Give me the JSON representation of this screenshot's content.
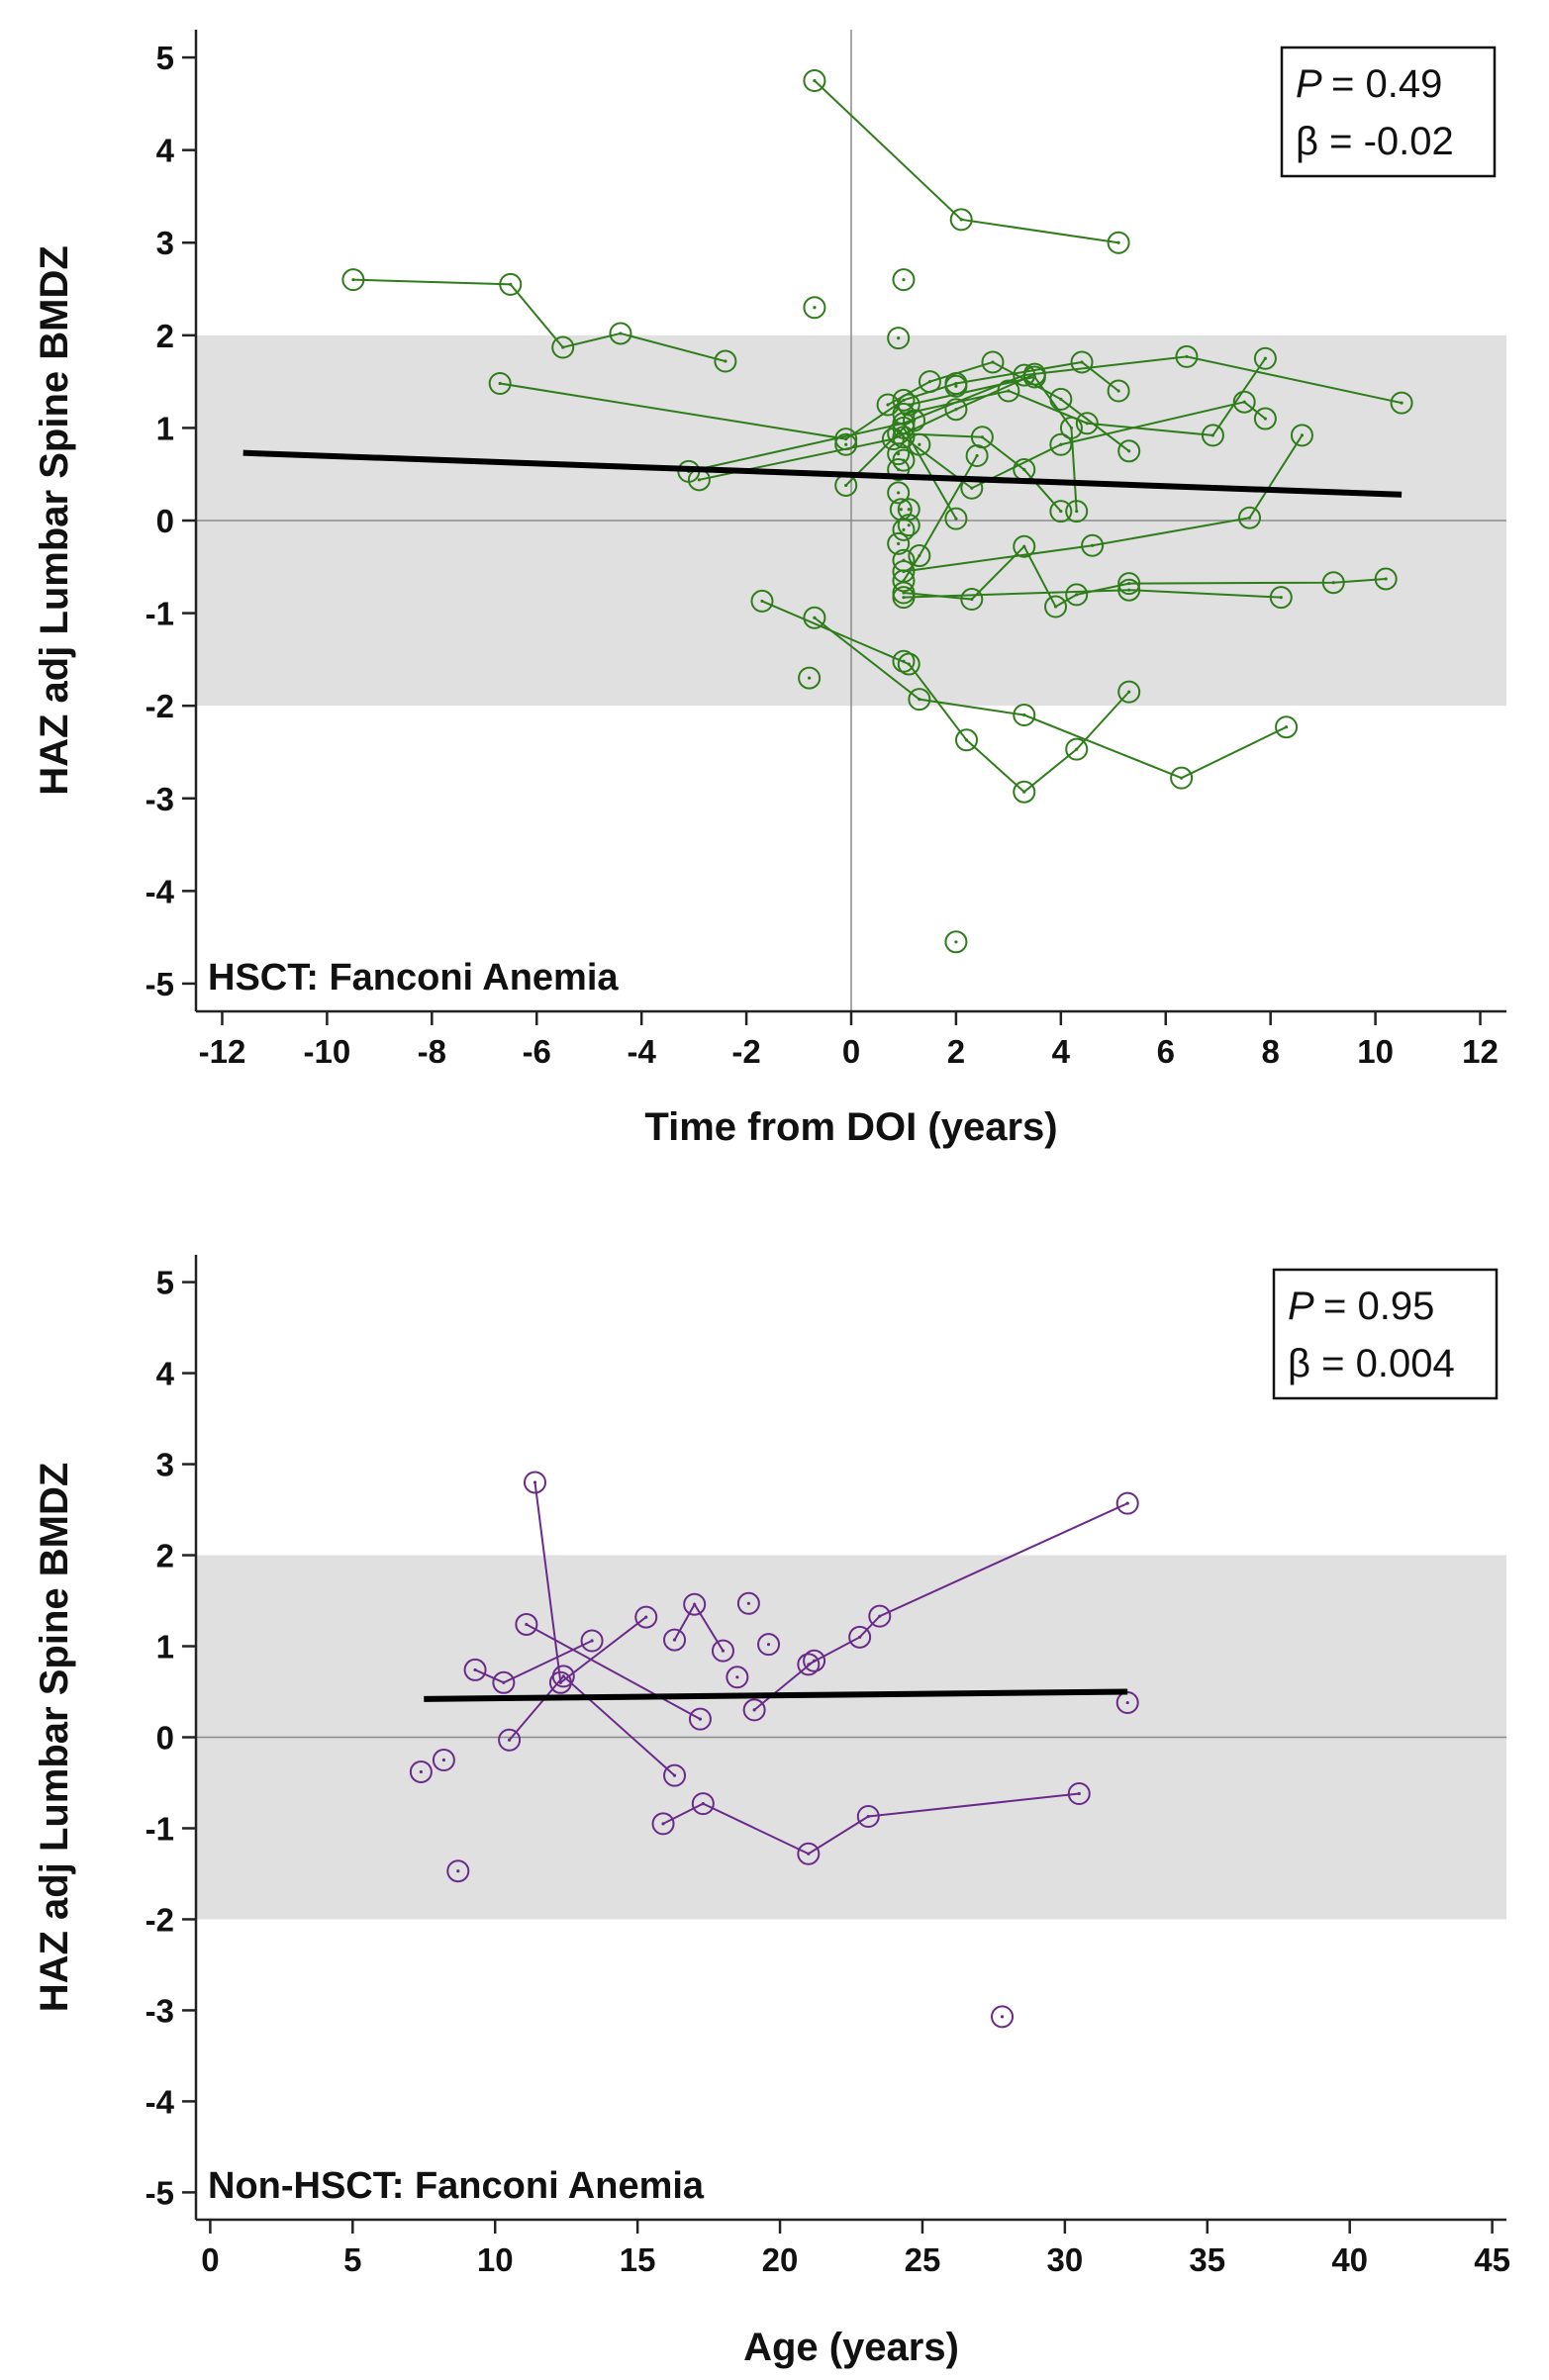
{
  "colors": {
    "hsct": "#2e7d1a",
    "non_hsct": "#6a2a8a",
    "band": "#e0e0e0",
    "trend": "#000000",
    "axis": "#222222",
    "refline": "#8a8a8a"
  },
  "chart_data": [
    {
      "type": "scatter",
      "panel_label": "HSCT: Fanconi Anemia",
      "xlabel": "Time from DOI (years)",
      "ylabel": "HAZ adj Lumbar Spine BMDZ",
      "xlim": [
        -12.5,
        12.5
      ],
      "ylim": [
        -5.3,
        5.3
      ],
      "xticks": [
        -12,
        -10,
        -8,
        -6,
        -4,
        -2,
        0,
        2,
        4,
        6,
        8,
        10,
        12
      ],
      "yticks": [
        5,
        4,
        3,
        2,
        1,
        0,
        -1,
        -2,
        -3,
        -4,
        -5
      ],
      "reference_band": [
        -2,
        2
      ],
      "reference_vline": 0,
      "stats": {
        "p_label": "P",
        "p_value": "= 0.49",
        "beta_label": "β  = -0.02"
      },
      "trend": {
        "x": [
          -11.6,
          10.5
        ],
        "y": [
          0.73,
          0.28
        ]
      },
      "series": [
        {
          "name": "subject-1",
          "points": [
            [
              -0.7,
              4.75
            ],
            [
              2.1,
              3.25
            ],
            [
              5.1,
              3.0
            ]
          ]
        },
        {
          "name": "subject-2",
          "points": [
            [
              -9.5,
              2.6
            ],
            [
              -6.5,
              2.55
            ],
            [
              -5.5,
              1.87
            ],
            [
              -4.4,
              2.02
            ],
            [
              -2.4,
              1.72
            ]
          ]
        },
        {
          "name": "subject-3",
          "points": [
            [
              -6.7,
              1.48
            ],
            [
              -0.1,
              0.88
            ],
            [
              1.0,
              1.3
            ],
            [
              2.0,
              1.48
            ],
            [
              4.4,
              1.71
            ],
            [
              5.1,
              1.4
            ]
          ]
        },
        {
          "name": "subject-4",
          "points": [
            [
              -3.1,
              0.53
            ],
            [
              1.0,
              1.05
            ],
            [
              3.3,
              1.57
            ],
            [
              6.4,
              1.77
            ],
            [
              10.5,
              1.27
            ]
          ]
        },
        {
          "name": "subject-5",
          "points": [
            [
              -2.9,
              0.44
            ],
            [
              0.8,
              0.88
            ],
            [
              2.0,
              1.2
            ],
            [
              3.5,
              1.58
            ]
          ]
        },
        {
          "name": "subject-6",
          "points": [
            [
              0.7,
              1.25
            ],
            [
              1.5,
              1.5
            ],
            [
              2.7,
              1.71
            ],
            [
              4.0,
              1.31
            ],
            [
              5.3,
              0.75
            ]
          ]
        },
        {
          "name": "subject-7",
          "points": [
            [
              0.9,
              0.94
            ],
            [
              2.5,
              0.9
            ],
            [
              3.3,
              0.55
            ],
            [
              4.0,
              0.1
            ]
          ]
        },
        {
          "name": "subject-8",
          "points": [
            [
              1.0,
              1.15
            ],
            [
              3.0,
              1.4
            ],
            [
              4.5,
              1.05
            ],
            [
              6.9,
              0.92
            ],
            [
              7.9,
              1.75
            ]
          ]
        },
        {
          "name": "subject-9",
          "points": [
            [
              1.0,
              0.9
            ],
            [
              2.3,
              0.35
            ],
            [
              4.0,
              0.82
            ],
            [
              7.5,
              1.28
            ],
            [
              7.9,
              1.1
            ]
          ]
        },
        {
          "name": "subject-10",
          "points": [
            [
              1.1,
              1.25
            ],
            [
              3.5,
              1.55
            ],
            [
              4.2,
              1.0
            ],
            [
              4.3,
              0.1
            ]
          ]
        },
        {
          "name": "subject-11",
          "points": [
            [
              -0.1,
              0.38
            ],
            [
              1.0,
              1.0
            ],
            [
              2.0,
              0.02
            ]
          ]
        },
        {
          "name": "subject-12",
          "points": [
            [
              1.0,
              -0.55
            ],
            [
              4.6,
              -0.27
            ],
            [
              7.6,
              0.03
            ],
            [
              8.6,
              0.92
            ]
          ]
        },
        {
          "name": "subject-13",
          "points": [
            [
              1.0,
              -0.78
            ],
            [
              2.3,
              -0.85
            ],
            [
              3.3,
              -0.28
            ],
            [
              3.9,
              -0.93
            ],
            [
              4.3,
              -0.8
            ],
            [
              5.3,
              -0.68
            ],
            [
              9.2,
              -0.67
            ],
            [
              10.2,
              -0.63
            ]
          ]
        },
        {
          "name": "subject-14",
          "points": [
            [
              1.0,
              -0.83
            ],
            [
              5.3,
              -0.75
            ],
            [
              8.2,
              -0.83
            ]
          ]
        },
        {
          "name": "subject-15",
          "points": [
            [
              -1.7,
              -0.87
            ],
            [
              1.1,
              -1.55
            ],
            [
              2.2,
              -2.37
            ],
            [
              3.3,
              -2.93
            ],
            [
              4.3,
              -2.47
            ],
            [
              5.3,
              -1.85
            ]
          ]
        },
        {
          "name": "subject-16",
          "points": [
            [
              -0.7,
              -1.05
            ],
            [
              1.3,
              -1.93
            ],
            [
              3.3,
              -2.1
            ],
            [
              6.3,
              -2.78
            ],
            [
              8.3,
              -2.23
            ]
          ]
        },
        {
          "name": "subject-17",
          "points": [
            [
              1.0,
              -0.65
            ],
            [
              1.3,
              -0.38
            ],
            [
              2.4,
              0.7
            ]
          ]
        },
        {
          "name": "singletons",
          "points": [
            [
              -0.7,
              2.3
            ],
            [
              1.0,
              2.6
            ],
            [
              0.9,
              1.97
            ],
            [
              -0.8,
              -1.7
            ],
            [
              2.0,
              -4.55
            ],
            [
              1.0,
              -1.52
            ],
            [
              0.9,
              0.55
            ],
            [
              0.9,
              0.3
            ],
            [
              0.95,
              0.12
            ],
            [
              1.0,
              -0.1
            ],
            [
              0.9,
              -0.25
            ],
            [
              1.0,
              -0.43
            ],
            [
              1.1,
              0.12
            ],
            [
              1.1,
              -0.05
            ],
            [
              0.9,
              0.72
            ],
            [
              1.0,
              0.65
            ],
            [
              1.2,
              1.08
            ],
            [
              1.3,
              0.82
            ],
            [
              -0.1,
              0.82
            ],
            [
              2.0,
              1.45
            ]
          ]
        }
      ]
    },
    {
      "type": "scatter",
      "panel_label": "Non-HSCT: Fanconi Anemia",
      "xlabel": "Age (years)",
      "ylabel": "HAZ adj Lumbar Spine BMDZ",
      "xlim": [
        -0.5,
        45.5
      ],
      "ylim": [
        -5.3,
        5.3
      ],
      "xticks": [
        0,
        5,
        10,
        15,
        20,
        25,
        30,
        35,
        40,
        45
      ],
      "yticks": [
        5,
        4,
        3,
        2,
        1,
        0,
        -1,
        -2,
        -3,
        -4,
        -5
      ],
      "reference_band": [
        -2,
        2
      ],
      "reference_vline": null,
      "stats": {
        "p_label": "P",
        "p_value": "= 0.95",
        "beta_label": "β  = 0.004"
      },
      "trend": {
        "x": [
          7.5,
          32.2
        ],
        "y": [
          0.42,
          0.5
        ]
      },
      "series": [
        {
          "name": "subject-1",
          "points": [
            [
              11.4,
              2.8
            ],
            [
              12.3,
              0.6
            ],
            [
              15.3,
              1.32
            ]
          ]
        },
        {
          "name": "subject-2",
          "points": [
            [
              11.1,
              1.24
            ],
            [
              17.2,
              0.2
            ]
          ]
        },
        {
          "name": "subject-3",
          "points": [
            [
              9.3,
              0.74
            ],
            [
              10.3,
              0.6
            ],
            [
              13.4,
              1.06
            ]
          ]
        },
        {
          "name": "subject-4",
          "points": [
            [
              10.5,
              -0.03
            ],
            [
              12.4,
              0.67
            ],
            [
              16.3,
              -0.42
            ]
          ]
        },
        {
          "name": "subject-5",
          "points": [
            [
              16.3,
              1.07
            ],
            [
              17.0,
              1.46
            ],
            [
              18.0,
              0.95
            ]
          ]
        },
        {
          "name": "subject-6",
          "points": [
            [
              19.1,
              0.3
            ],
            [
              21.2,
              0.84
            ]
          ]
        },
        {
          "name": "subject-7",
          "points": [
            [
              15.9,
              -0.95
            ],
            [
              17.3,
              -0.73
            ],
            [
              21.0,
              -1.28
            ],
            [
              23.1,
              -0.87
            ],
            [
              30.5,
              -0.62
            ]
          ]
        },
        {
          "name": "subject-8",
          "points": [
            [
              21.0,
              0.8
            ],
            [
              22.8,
              1.1
            ],
            [
              23.5,
              1.33
            ],
            [
              32.2,
              2.57
            ]
          ]
        },
        {
          "name": "singletons",
          "points": [
            [
              7.4,
              -0.38
            ],
            [
              8.2,
              -0.25
            ],
            [
              8.7,
              -1.47
            ],
            [
              18.5,
              0.66
            ],
            [
              18.9,
              1.47
            ],
            [
              19.6,
              1.02
            ],
            [
              32.2,
              0.38
            ],
            [
              27.8,
              -3.07
            ]
          ]
        }
      ]
    }
  ]
}
